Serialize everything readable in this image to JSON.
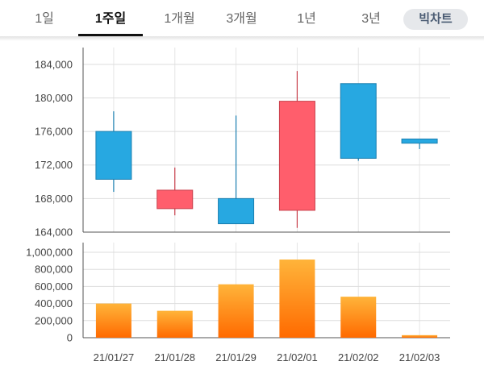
{
  "tabs": [
    {
      "label": "1일",
      "active": false
    },
    {
      "label": "1주일",
      "active": true
    },
    {
      "label": "1개월",
      "active": false
    },
    {
      "label": "3개월",
      "active": false
    },
    {
      "label": "1년",
      "active": false
    },
    {
      "label": "3년",
      "active": false
    }
  ],
  "chart_button": {
    "label": "빅차트"
  },
  "colors": {
    "up": "#ff5e6c",
    "down": "#27a8e1",
    "volume_top": "#ffb43a",
    "volume_bottom": "#ff6a00"
  },
  "chart_data": [
    {
      "type": "candlestick",
      "categories": [
        "21/01/27",
        "21/01/28",
        "21/01/29",
        "21/02/01",
        "21/02/02",
        "21/02/03"
      ],
      "series": [
        {
          "open": 176000,
          "close": 170300,
          "high": 178400,
          "low": 168800
        },
        {
          "open": 166800,
          "close": 169000,
          "high": 171700,
          "low": 166000
        },
        {
          "open": 168000,
          "close": 165000,
          "high": 177900,
          "low": 165000
        },
        {
          "open": 166600,
          "close": 179600,
          "high": 183200,
          "low": 164500
        },
        {
          "open": 181700,
          "close": 172800,
          "high": 181700,
          "low": 172500
        },
        {
          "open": 175100,
          "close": 174600,
          "high": 175100,
          "low": 173900
        }
      ],
      "yticks": [
        "184,000",
        "180,000",
        "176,000",
        "172,000",
        "168,000",
        "164,000"
      ],
      "ylim": [
        164000,
        186000
      ],
      "grid": true
    },
    {
      "type": "bar",
      "categories": [
        "21/01/27",
        "21/01/28",
        "21/01/29",
        "21/02/01",
        "21/02/02",
        "21/02/03"
      ],
      "values": [
        400000,
        315000,
        625000,
        915000,
        480000,
        30000
      ],
      "yticks": [
        "1,000,000",
        "800,000",
        "600,000",
        "400,000",
        "200,000",
        "0"
      ],
      "ylim": [
        0,
        1000000
      ],
      "grid": true
    }
  ]
}
